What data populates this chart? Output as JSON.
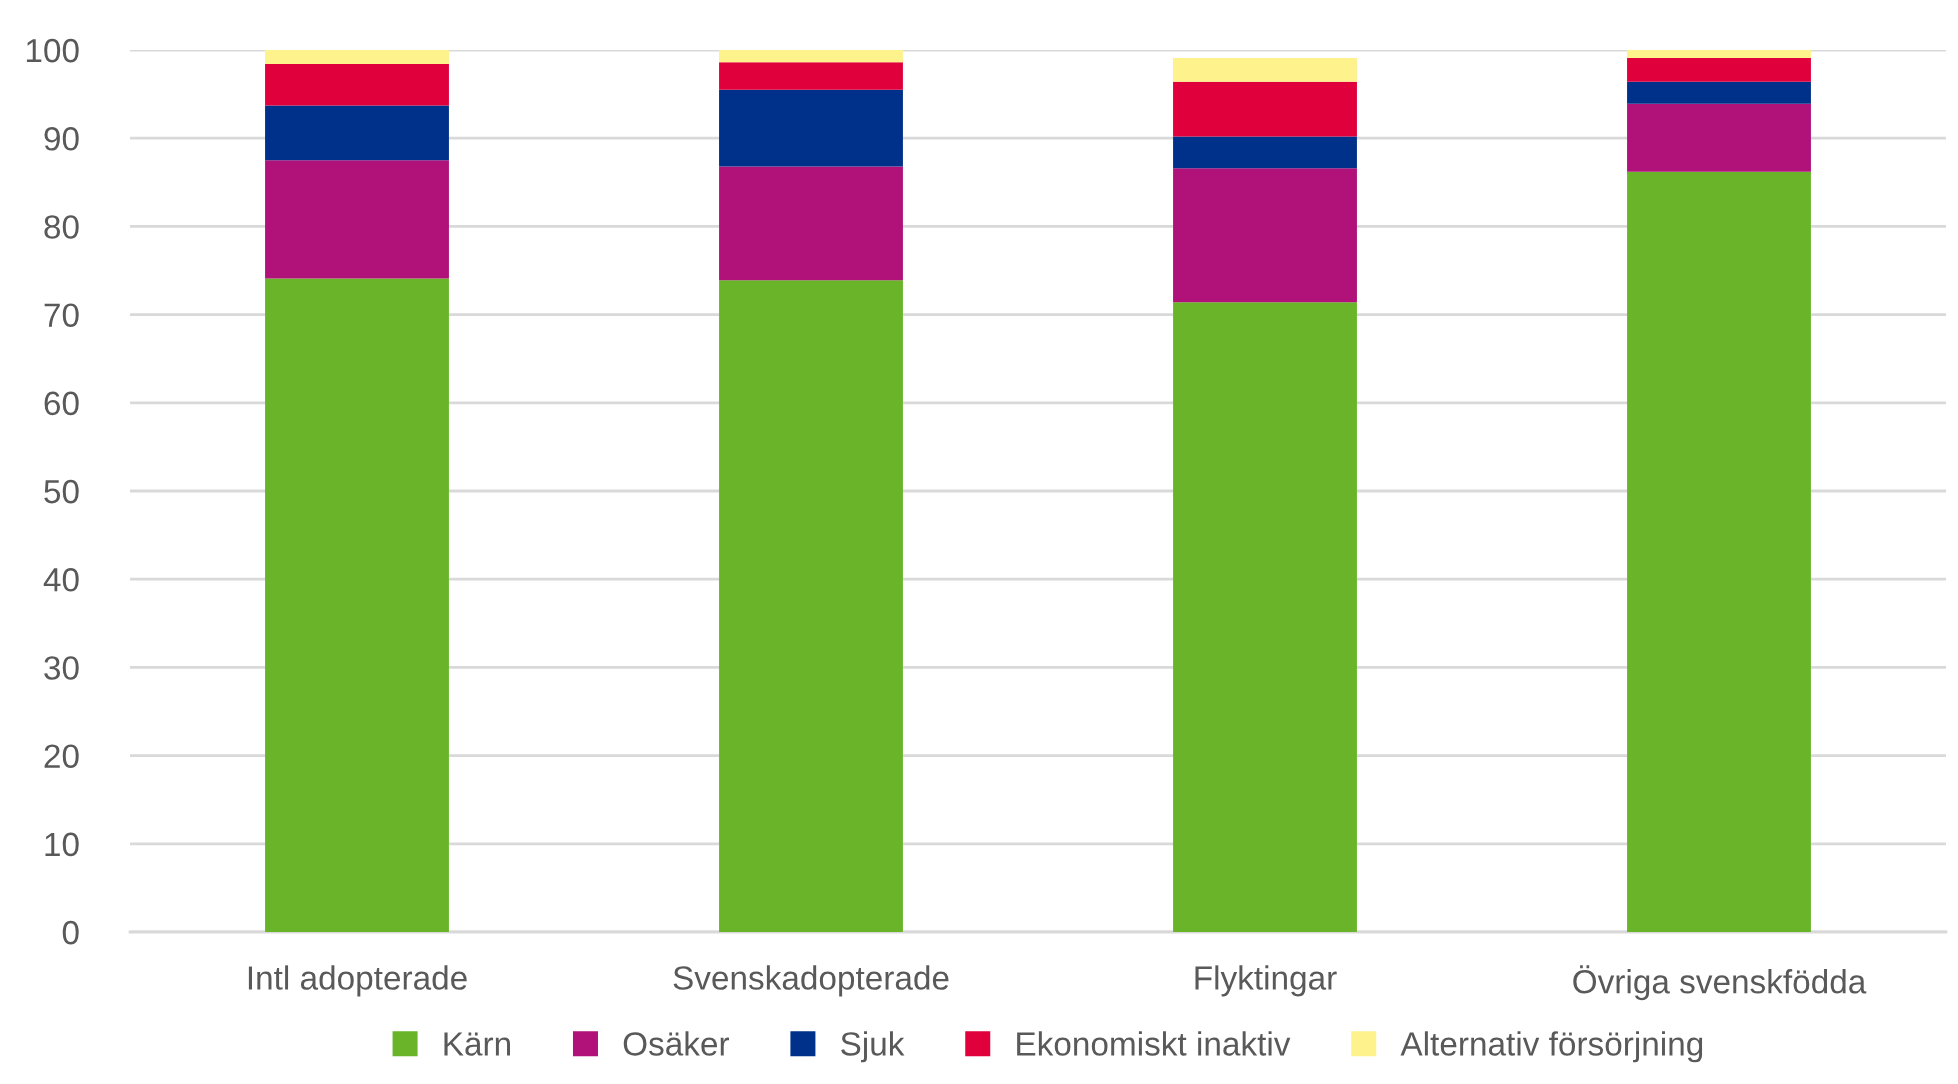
{
  "chart_data": {
    "type": "bar",
    "stacked": true,
    "categories": [
      "Intl adopterade",
      "Svenskadopterade",
      "Flyktingar",
      "Övriga svenskfödda"
    ],
    "series": [
      {
        "name": "Kärn",
        "color": "#6ab42a",
        "values": [
          74.1,
          73.9,
          71.4,
          86.2
        ]
      },
      {
        "name": "Osäker",
        "color": "#b0127a",
        "values": [
          13.4,
          12.9,
          15.2,
          7.7
        ]
      },
      {
        "name": "Sjuk",
        "color": "#00318a",
        "values": [
          6.2,
          8.7,
          3.6,
          2.5
        ]
      },
      {
        "name": "Ekonomiskt inaktiv",
        "color": "#e0003c",
        "values": [
          4.7,
          3.1,
          6.2,
          2.7
        ]
      },
      {
        "name": "Alternativ försörjning",
        "color": "#fdf28c",
        "values": [
          1.6,
          1.4,
          2.7,
          0.9
        ]
      }
    ],
    "ylim": [
      0,
      100
    ],
    "yticks": [
      0,
      10,
      20,
      30,
      40,
      50,
      60,
      70,
      80,
      90,
      100
    ],
    "grid": "y",
    "legend": "bottom"
  }
}
